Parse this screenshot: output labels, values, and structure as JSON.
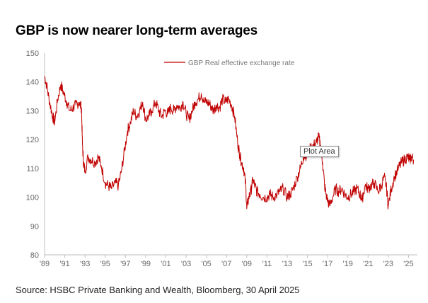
{
  "header": {
    "title": "GBP is now nearer long-term averages"
  },
  "footer": {
    "source": "Source: HSBC Private Banking and Wealth, Bloomberg, 30 April 2025"
  },
  "overlay": {
    "tooltip": "Plot Area"
  },
  "chart_data": {
    "type": "line",
    "title": "GBP is now nearer long-term averages",
    "xlabel": "",
    "ylabel": "",
    "ylim": [
      80,
      150
    ],
    "yticks": [
      80,
      90,
      100,
      110,
      120,
      130,
      140,
      150
    ],
    "xlim": [
      1989.0,
      2025.6
    ],
    "xtick_labels": [
      "'89",
      "'91",
      "'93",
      "'95",
      "'97",
      "'99",
      "'01",
      "'03",
      "'05",
      "'07",
      "'09",
      "'11",
      "'13",
      "'15",
      "'17",
      "'19",
      "'21",
      "'23",
      "'25"
    ],
    "xtick_years": [
      1989,
      1991,
      1993,
      1995,
      1997,
      1999,
      2001,
      2003,
      2005,
      2007,
      2009,
      2011,
      2013,
      2015,
      2017,
      2019,
      2021,
      2023,
      2025
    ],
    "grid": false,
    "legend_position": "top-center",
    "series": [
      {
        "name": "GBP Real effective exchange rate",
        "color": "#c00000",
        "x": [
          1989.0,
          1989.2,
          1989.5,
          1989.8,
          1990.0,
          1990.3,
          1990.6,
          1990.9,
          1991.2,
          1991.5,
          1991.8,
          1992.1,
          1992.4,
          1992.65,
          1992.75,
          1992.85,
          1993.0,
          1993.3,
          1993.6,
          1994.0,
          1994.3,
          1994.6,
          1995.0,
          1995.3,
          1995.6,
          1996.0,
          1996.3,
          1996.6,
          1996.9,
          1997.2,
          1997.5,
          1997.8,
          1998.1,
          1998.4,
          1998.7,
          1999.0,
          1999.3,
          1999.6,
          2000.0,
          2000.3,
          2000.6,
          2000.9,
          2001.2,
          2001.5,
          2001.8,
          2002.1,
          2002.4,
          2002.7,
          2003.0,
          2003.3,
          2003.6,
          2003.9,
          2004.2,
          2004.5,
          2004.8,
          2005.1,
          2005.4,
          2005.7,
          2006.0,
          2006.3,
          2006.6,
          2006.9,
          2007.2,
          2007.5,
          2007.8,
          2008.1,
          2008.3,
          2008.5,
          2008.7,
          2008.9,
          2009.0,
          2009.2,
          2009.4,
          2009.6,
          2009.8,
          2010.0,
          2010.3,
          2010.6,
          2011.0,
          2011.3,
          2011.6,
          2012.0,
          2012.3,
          2012.6,
          2013.0,
          2013.3,
          2013.6,
          2014.0,
          2014.3,
          2014.6,
          2015.0,
          2015.3,
          2015.6,
          2015.9,
          2016.1,
          2016.3,
          2016.5,
          2016.7,
          2016.9,
          2017.2,
          2017.5,
          2017.8,
          2018.1,
          2018.4,
          2018.7,
          2019.0,
          2019.3,
          2019.6,
          2019.9,
          2020.2,
          2020.4,
          2020.7,
          2021.0,
          2021.3,
          2021.6,
          2022.0,
          2022.3,
          2022.6,
          2022.8,
          2023.0,
          2023.3,
          2023.6,
          2024.0,
          2024.3,
          2024.6,
          2024.9,
          2025.1,
          2025.3,
          2025.5
        ],
        "values": [
          142,
          139,
          133,
          128,
          126,
          134,
          139,
          136,
          133,
          130,
          131,
          132,
          133,
          131,
          118,
          112,
          109,
          114,
          113,
          112,
          114,
          111,
          105,
          104,
          103,
          105,
          104,
          109,
          116,
          123,
          126,
          130,
          128,
          130,
          133,
          127,
          128,
          130,
          133,
          130,
          128,
          130,
          129,
          131,
          130,
          132,
          131,
          133,
          129,
          127,
          130,
          133,
          134,
          136,
          133,
          133,
          132,
          130,
          132,
          131,
          134,
          133,
          134,
          132,
          128,
          119,
          115,
          112,
          110,
          104,
          96,
          100,
          102,
          106,
          104,
          102,
          101,
          100,
          100,
          101,
          100,
          101,
          102,
          103,
          100,
          101,
          103,
          107,
          110,
          114,
          115,
          117,
          118,
          119,
          121,
          118,
          112,
          104,
          100,
          97,
          100,
          103,
          102,
          103,
          101,
          100,
          101,
          102,
          103,
          101,
          99,
          104,
          103,
          104,
          105,
          102,
          104,
          107,
          104,
          97,
          103,
          107,
          110,
          112,
          113,
          114,
          113,
          114,
          113
        ]
      }
    ]
  }
}
